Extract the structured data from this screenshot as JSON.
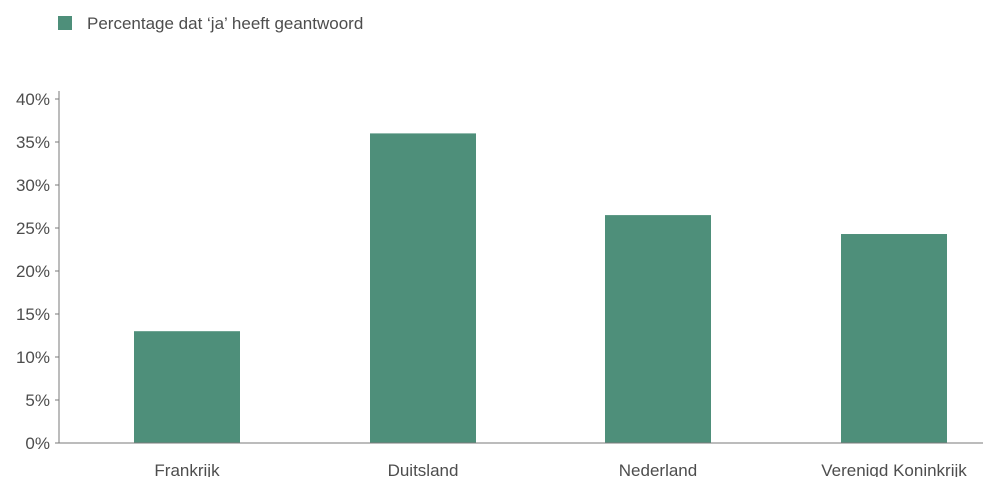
{
  "chart_data": {
    "type": "bar",
    "title": "",
    "xlabel": "",
    "ylabel": "",
    "categories": [
      "Frankrijk",
      "Duitsland",
      "Nederland",
      "Verenigd Koninkrijk"
    ],
    "series": [
      {
        "name": "Percentage dat ‘ja’ heeft geantwoord",
        "values": [
          13,
          36,
          26.5,
          24.3
        ]
      }
    ],
    "ylim": [
      0,
      40
    ],
    "yticks": [
      0,
      5,
      10,
      15,
      20,
      25,
      30,
      35,
      40
    ],
    "ytick_labels": [
      "0%",
      "5%",
      "10%",
      "15%",
      "20%",
      "25%",
      "30%",
      "35%",
      "40%"
    ],
    "grid": false,
    "legend_position": "top-left",
    "colors": {
      "bar": "#4e8f7a",
      "axis": "#7a7a7a",
      "text": "#4d4d4d"
    }
  }
}
